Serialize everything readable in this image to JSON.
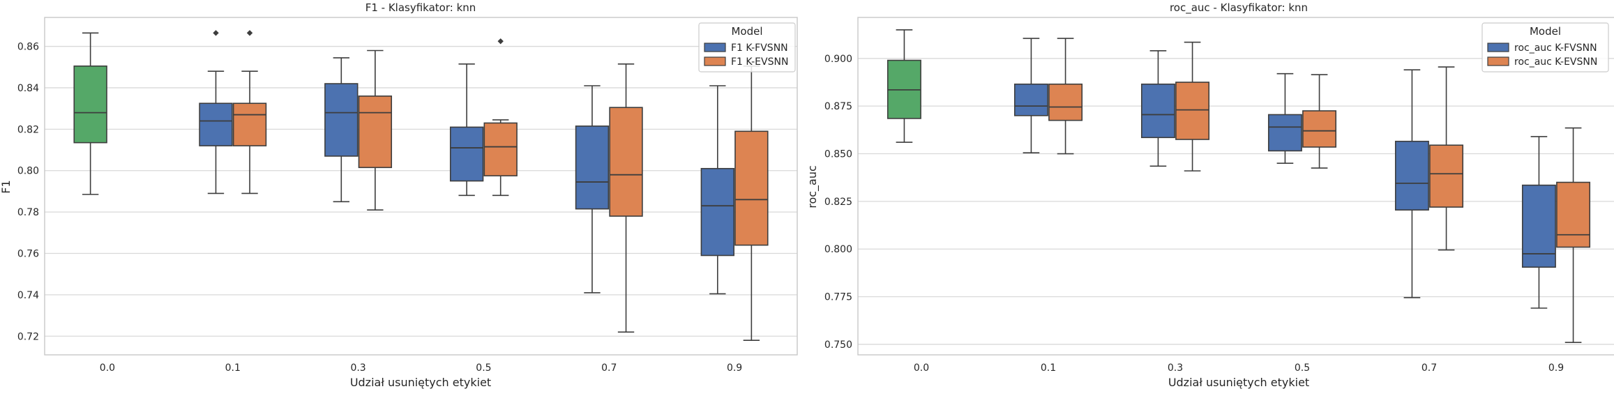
{
  "chart_data": [
    {
      "type": "box",
      "title": "F1 - Klasyfikator: knn",
      "xlabel": "Udział usuniętych etykiet",
      "ylabel": "F1",
      "ylim": [
        0.711,
        0.874
      ],
      "yticks": [
        0.72,
        0.74,
        0.76,
        0.78,
        0.8,
        0.82,
        0.84,
        0.86
      ],
      "ytick_labels": [
        "0.72",
        "0.74",
        "0.76",
        "0.78",
        "0.80",
        "0.82",
        "0.84",
        "0.86"
      ],
      "categories": [
        "0.0",
        "0.1",
        "0.3",
        "0.5",
        "0.7",
        "0.9"
      ],
      "grid": true,
      "legend": {
        "title": "Model",
        "position": "top-right",
        "entries": [
          "F1 K-FVSNN",
          "F1 K-EVSNN"
        ]
      },
      "colors": {
        "K-FVSNN": "#4c72b0",
        "K-EVSNN": "#dd8452",
        "baseline": "#55a868"
      },
      "boxes": [
        {
          "category": "0.0",
          "series": "baseline",
          "whisker_low": 0.7885,
          "q1": 0.8135,
          "median": 0.828,
          "q3": 0.8505,
          "whisker_high": 0.8665,
          "outliers": []
        },
        {
          "category": "0.1",
          "series": "F1 K-FVSNN",
          "whisker_low": 0.789,
          "q1": 0.812,
          "median": 0.824,
          "q3": 0.8325,
          "whisker_high": 0.848,
          "outliers": [
            0.8665
          ]
        },
        {
          "category": "0.1",
          "series": "F1 K-EVSNN",
          "whisker_low": 0.789,
          "q1": 0.812,
          "median": 0.827,
          "q3": 0.8325,
          "whisker_high": 0.848,
          "outliers": [
            0.8665
          ]
        },
        {
          "category": "0.3",
          "series": "F1 K-FVSNN",
          "whisker_low": 0.785,
          "q1": 0.807,
          "median": 0.828,
          "q3": 0.842,
          "whisker_high": 0.8545,
          "outliers": []
        },
        {
          "category": "0.3",
          "series": "F1 K-EVSNN",
          "whisker_low": 0.781,
          "q1": 0.8015,
          "median": 0.828,
          "q3": 0.836,
          "whisker_high": 0.858,
          "outliers": []
        },
        {
          "category": "0.5",
          "series": "F1 K-FVSNN",
          "whisker_low": 0.788,
          "q1": 0.795,
          "median": 0.811,
          "q3": 0.821,
          "whisker_high": 0.8515,
          "outliers": []
        },
        {
          "category": "0.5",
          "series": "F1 K-EVSNN",
          "whisker_low": 0.788,
          "q1": 0.7975,
          "median": 0.8115,
          "q3": 0.823,
          "whisker_high": 0.8245,
          "outliers": [
            0.8625
          ]
        },
        {
          "category": "0.7",
          "series": "F1 K-FVSNN",
          "whisker_low": 0.741,
          "q1": 0.7815,
          "median": 0.7945,
          "q3": 0.8215,
          "whisker_high": 0.841,
          "outliers": []
        },
        {
          "category": "0.7",
          "series": "F1 K-EVSNN",
          "whisker_low": 0.722,
          "q1": 0.778,
          "median": 0.798,
          "q3": 0.8305,
          "whisker_high": 0.8515,
          "outliers": []
        },
        {
          "category": "0.9",
          "series": "F1 K-FVSNN",
          "whisker_low": 0.7405,
          "q1": 0.759,
          "median": 0.783,
          "q3": 0.801,
          "whisker_high": 0.841,
          "outliers": []
        },
        {
          "category": "0.9",
          "series": "F1 K-EVSNN",
          "whisker_low": 0.718,
          "q1": 0.764,
          "median": 0.786,
          "q3": 0.819,
          "whisker_high": 0.8505,
          "outliers": []
        }
      ]
    },
    {
      "type": "box",
      "title": "roc_auc - Klasyfikator: knn",
      "xlabel": "Udział usuniętych etykiet",
      "ylabel": "roc_auc",
      "ylim": [
        0.7445,
        0.9215
      ],
      "yticks": [
        0.75,
        0.775,
        0.8,
        0.825,
        0.85,
        0.875,
        0.9
      ],
      "ytick_labels": [
        "0.750",
        "0.775",
        "0.800",
        "0.825",
        "0.850",
        "0.875",
        "0.900"
      ],
      "categories": [
        "0.0",
        "0.1",
        "0.3",
        "0.5",
        "0.7",
        "0.9"
      ],
      "grid": true,
      "legend": {
        "title": "Model",
        "position": "top-right",
        "entries": [
          "roc_auc K-FVSNN",
          "roc_auc K-EVSNN"
        ]
      },
      "colors": {
        "K-FVSNN": "#4c72b0",
        "K-EVSNN": "#dd8452",
        "baseline": "#55a868"
      },
      "boxes": [
        {
          "category": "0.0",
          "series": "baseline",
          "whisker_low": 0.856,
          "q1": 0.8685,
          "median": 0.8835,
          "q3": 0.899,
          "whisker_high": 0.915,
          "outliers": []
        },
        {
          "category": "0.1",
          "series": "roc_auc K-FVSNN",
          "whisker_low": 0.8505,
          "q1": 0.87,
          "median": 0.875,
          "q3": 0.8865,
          "whisker_high": 0.9105,
          "outliers": []
        },
        {
          "category": "0.1",
          "series": "roc_auc K-EVSNN",
          "whisker_low": 0.85,
          "q1": 0.8675,
          "median": 0.8745,
          "q3": 0.8865,
          "whisker_high": 0.9105,
          "outliers": []
        },
        {
          "category": "0.3",
          "series": "roc_auc K-FVSNN",
          "whisker_low": 0.8435,
          "q1": 0.8585,
          "median": 0.8705,
          "q3": 0.8865,
          "whisker_high": 0.904,
          "outliers": []
        },
        {
          "category": "0.3",
          "series": "roc_auc K-EVSNN",
          "whisker_low": 0.841,
          "q1": 0.8575,
          "median": 0.873,
          "q3": 0.8875,
          "whisker_high": 0.9085,
          "outliers": []
        },
        {
          "category": "0.5",
          "series": "roc_auc K-FVSNN",
          "whisker_low": 0.845,
          "q1": 0.8515,
          "median": 0.864,
          "q3": 0.8705,
          "whisker_high": 0.892,
          "outliers": []
        },
        {
          "category": "0.5",
          "series": "roc_auc K-EVSNN",
          "whisker_low": 0.8425,
          "q1": 0.8535,
          "median": 0.862,
          "q3": 0.8725,
          "whisker_high": 0.8915,
          "outliers": []
        },
        {
          "category": "0.7",
          "series": "roc_auc K-FVSNN",
          "whisker_low": 0.7745,
          "q1": 0.8205,
          "median": 0.8345,
          "q3": 0.8565,
          "whisker_high": 0.894,
          "outliers": []
        },
        {
          "category": "0.7",
          "series": "roc_auc K-EVSNN",
          "whisker_low": 0.7995,
          "q1": 0.822,
          "median": 0.8395,
          "q3": 0.8545,
          "whisker_high": 0.8955,
          "outliers": []
        },
        {
          "category": "0.9",
          "series": "roc_auc K-FVSNN",
          "whisker_low": 0.769,
          "q1": 0.7905,
          "median": 0.7975,
          "q3": 0.8335,
          "whisker_high": 0.859,
          "outliers": []
        },
        {
          "category": "0.9",
          "series": "roc_auc K-EVSNN",
          "whisker_low": 0.751,
          "q1": 0.801,
          "median": 0.8075,
          "q3": 0.835,
          "whisker_high": 0.8635,
          "outliers": []
        }
      ]
    }
  ]
}
